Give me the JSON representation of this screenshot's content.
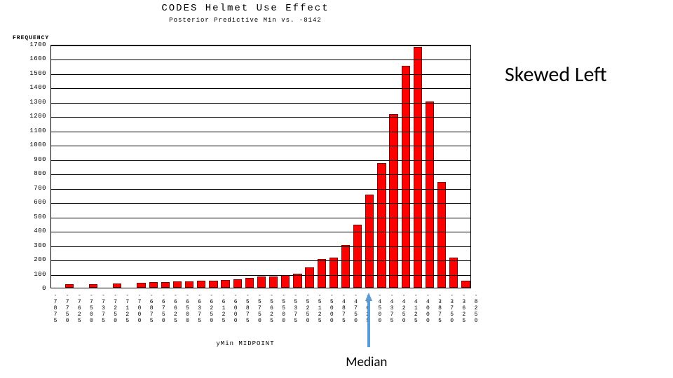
{
  "chart": {
    "type": "bar",
    "title": "CODES Helmet Use Effect",
    "subtitle": "Posterior Predictive Min vs. -8142",
    "ylabel": "FREQUENCY",
    "xlabel": "yMin MIDPOINT",
    "background_color": "#ffffff",
    "grid_color": "#000000",
    "bar_color": "#ff0000",
    "bar_border_color": "#800000",
    "title_fontsize": 14,
    "subtitle_fontsize": 9,
    "ylabel_fontsize": 8,
    "tick_fontsize": 9,
    "font_family": "Courier New, monospace",
    "ylim": [
      0,
      1700
    ],
    "ytick_step": 100,
    "bars": {
      "values": [
        0,
        25,
        0,
        25,
        0,
        30,
        0,
        35,
        40,
        40,
        45,
        45,
        50,
        50,
        55,
        60,
        70,
        80,
        80,
        90,
        100,
        140,
        200,
        210,
        300,
        440,
        650,
        870,
        1210,
        1550,
        1680,
        1300,
        740,
        210,
        50
      ],
      "xlabels": [
        "-7875",
        "-7750",
        "-7625",
        "-7500",
        "-7375",
        "-7250",
        "-7125",
        "-7000",
        "-6875",
        "-6750",
        "-6625",
        "-6500",
        "-6375",
        "-6250",
        "-6125",
        "-6000",
        "-5875",
        "-5750",
        "-5625",
        "-5500",
        "-5375",
        "-5250",
        "-5125",
        "-5000",
        "-4875",
        "-4750",
        "-4625",
        "-4500",
        "-4375",
        "-4250",
        "-4125",
        "-4000",
        "-3875",
        "-3750",
        "-3625"
      ],
      "extra_right_label": "-8250"
    },
    "bar_width_ratio": 0.72
  },
  "annotations": {
    "skew_label": "Skewed Left",
    "skew_fontsize": 30,
    "skew_color": "#000000",
    "median_label": "Median",
    "median_fontsize": 19,
    "median_color": "#000000",
    "arrow_color": "#5b9bd5",
    "arrow_bar_index": 26
  }
}
